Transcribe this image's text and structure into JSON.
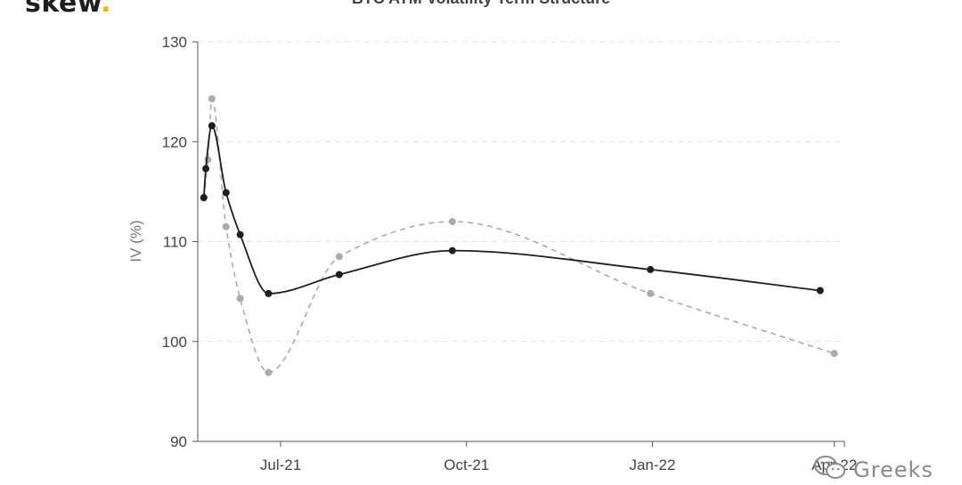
{
  "logo": {
    "text": "skew",
    "dot": "."
  },
  "watermark": {
    "text": "Greeks",
    "icon": "wechat-icon"
  },
  "chart_data": {
    "type": "line",
    "title": "BTC ATM Volatility Term Structure",
    "xlabel": "",
    "ylabel": "IV (%)",
    "ylim": [
      90,
      130
    ],
    "yticks": [
      90,
      100,
      110,
      120,
      130
    ],
    "xlim": [
      "2021-05-21",
      "2022-04-06"
    ],
    "xticks": [
      {
        "label": "Jul-21",
        "date": "2021-07-01"
      },
      {
        "label": "Oct-21",
        "date": "2021-10-01"
      },
      {
        "label": "Jan-22",
        "date": "2022-01-01"
      },
      {
        "label": "Apr-22",
        "date": "2022-04-01"
      }
    ],
    "grid": {
      "horizontal": true,
      "vertical": false
    },
    "colors": {
      "current": "#1e1e1e",
      "previous": "#aaaaaa"
    },
    "series": [
      {
        "style": "solid",
        "points": [
          {
            "x": "2021-05-24",
            "y": 114.4
          },
          {
            "x": "2021-05-25",
            "y": 117.3
          },
          {
            "x": "2021-05-28",
            "y": 121.6
          },
          {
            "x": "2021-06-04",
            "y": 114.9
          },
          {
            "x": "2021-06-11",
            "y": 110.7
          },
          {
            "x": "2021-06-25",
            "y": 104.8
          },
          {
            "x": "2021-07-30",
            "y": 106.7
          },
          {
            "x": "2021-09-24",
            "y": 109.1
          },
          {
            "x": "2021-12-31",
            "y": 107.2
          },
          {
            "x": "2022-03-25",
            "y": 105.1
          }
        ]
      },
      {
        "style": "dashed",
        "points": [
          {
            "x": "2021-05-24",
            "y": 114.4
          },
          {
            "x": "2021-05-26",
            "y": 118.2
          },
          {
            "x": "2021-05-28",
            "y": 124.3
          },
          {
            "x": "2021-06-04",
            "y": 111.5
          },
          {
            "x": "2021-06-11",
            "y": 104.3
          },
          {
            "x": "2021-06-25",
            "y": 96.9
          },
          {
            "x": "2021-07-30",
            "y": 108.5
          },
          {
            "x": "2021-09-24",
            "y": 112.0
          },
          {
            "x": "2021-12-31",
            "y": 104.8
          },
          {
            "x": "2022-04-01",
            "y": 98.8
          }
        ]
      }
    ]
  }
}
